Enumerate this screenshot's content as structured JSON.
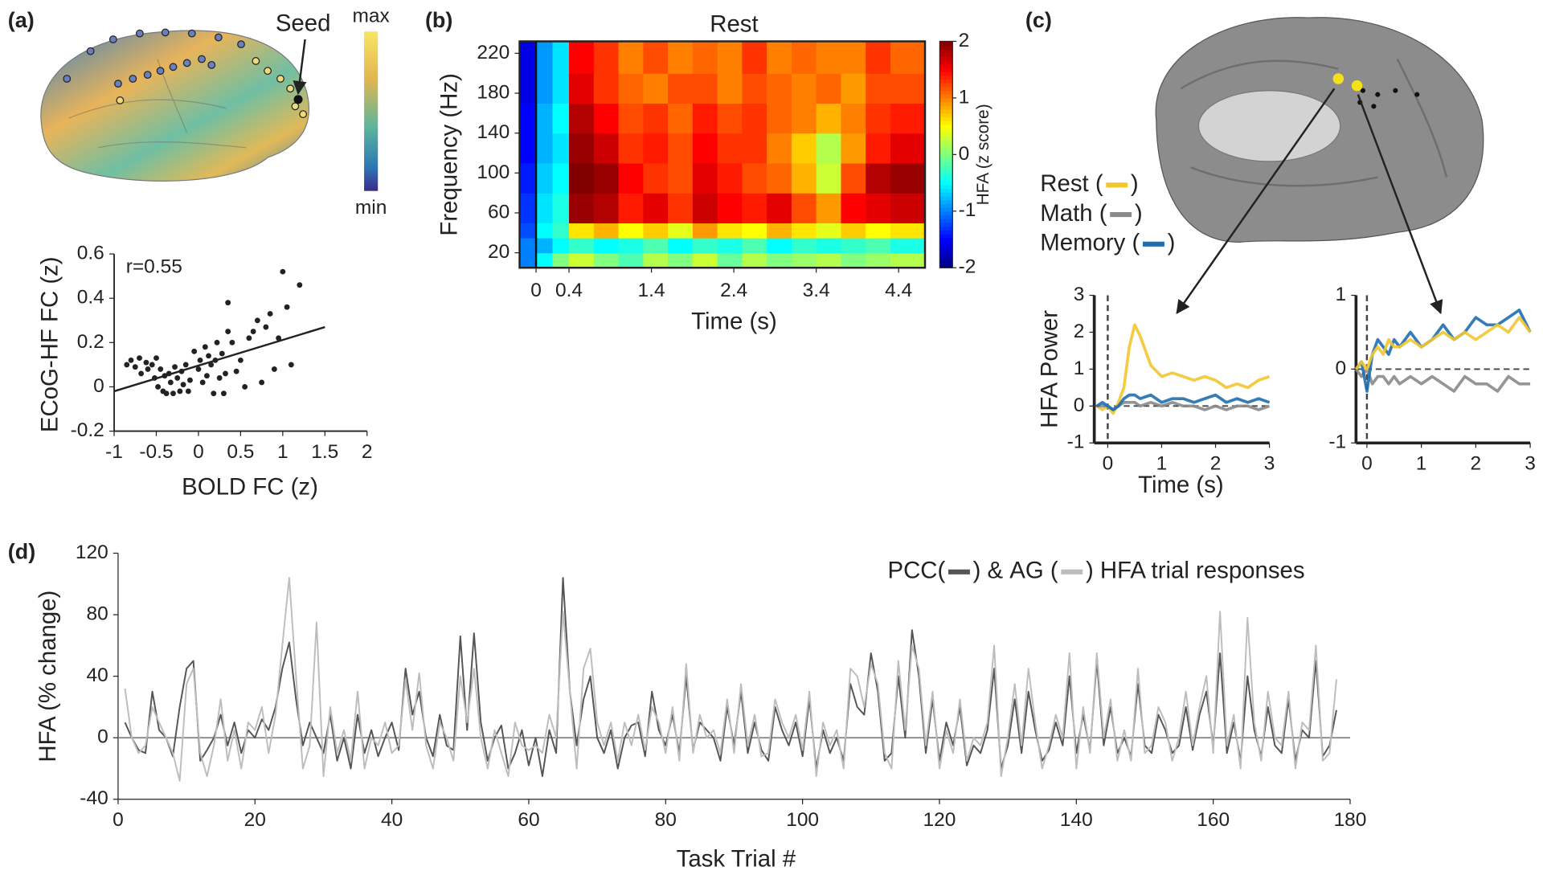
{
  "panel_labels": [
    "(a)",
    "(b)",
    "(c)",
    "(d)"
  ],
  "brain_map": {
    "max_label": "max",
    "min_label": "min",
    "seed_label": "Seed"
  },
  "chart_data": [
    {
      "type": "scatter",
      "xlabel": "BOLD FC (z)",
      "ylabel": "ECoG-HF FC (z)",
      "annotation": "r=0.55",
      "color": "#222222",
      "x": [
        -0.85,
        -0.8,
        -0.75,
        -0.7,
        -0.68,
        -0.62,
        -0.6,
        -0.55,
        -0.52,
        -0.5,
        -0.48,
        -0.45,
        -0.42,
        -0.4,
        -0.38,
        -0.35,
        -0.33,
        -0.3,
        -0.28,
        -0.25,
        -0.22,
        -0.2,
        -0.18,
        -0.15,
        -0.12,
        -0.1,
        -0.05,
        0,
        0.02,
        0.05,
        0.08,
        0.1,
        0.12,
        0.15,
        0.18,
        0.2,
        0.22,
        0.25,
        0.28,
        0.3,
        0.32,
        0.35,
        0.4,
        0.45,
        0.5,
        0.55,
        0.6,
        0.65,
        0.7,
        0.75,
        0.8,
        0.85,
        0.9,
        0.95,
        1.0,
        1.05,
        1.1,
        1.2,
        0.35
      ],
      "values": [
        0.1,
        0.12,
        0.09,
        0.13,
        0.06,
        0.11,
        0.08,
        0.1,
        0.04,
        0.13,
        0.0,
        0.08,
        -0.02,
        0.05,
        -0.03,
        0.06,
        0.02,
        -0.03,
        0.09,
        0.04,
        -0.02,
        0.07,
        0.01,
        0.1,
        -0.02,
        0.03,
        0.16,
        0.08,
        0.12,
        0.02,
        0.18,
        0.05,
        0.14,
        0.1,
        -0.03,
        0.12,
        0.2,
        0.04,
        0.15,
        -0.03,
        0.06,
        0.38,
        0.2,
        0.07,
        0.12,
        0.0,
        0.22,
        0.25,
        0.3,
        0.02,
        0.27,
        0.33,
        0.08,
        0.22,
        0.52,
        0.36,
        0.1,
        0.46,
        0.25
      ],
      "fit_line": {
        "x": [
          -1,
          1.5
        ],
        "y": [
          -0.02,
          0.27
        ]
      },
      "xlim": [
        -1,
        2
      ],
      "ylim": [
        -0.2,
        0.6
      ],
      "xticks": [
        -1,
        -0.5,
        0,
        0.5,
        1,
        1.5,
        2
      ],
      "yticks": [
        -0.2,
        0,
        0.2,
        0.4,
        0.6
      ]
    },
    {
      "type": "heatmap",
      "title": "Rest",
      "xlabel": "Time (s)",
      "ylabel": "Frequency (Hz)",
      "x_edges": [
        -0.2,
        0,
        0.2,
        0.4,
        0.7,
        1.0,
        1.3,
        1.6,
        1.9,
        2.2,
        2.5,
        2.8,
        3.1,
        3.4,
        3.7,
        4.0,
        4.3,
        4.72
      ],
      "y_edges": [
        5,
        20,
        35,
        50,
        80,
        110,
        140,
        170,
        200,
        232
      ],
      "z": [
        [
          -1,
          -0.5,
          0,
          0.3,
          0,
          -0.2,
          0.2,
          0,
          0.3,
          -0.1,
          0.2,
          0,
          0.1,
          0.2,
          0,
          0.1,
          0.2
        ],
        [
          -1,
          -0.8,
          -0.5,
          -0.3,
          -0.5,
          -0.4,
          -0.2,
          -0.5,
          -0.3,
          -0.4,
          -0.2,
          -0.5,
          -0.3,
          -0.4,
          -0.3,
          -0.2,
          -0.4
        ],
        [
          -1.2,
          -0.5,
          -0.3,
          0.6,
          0.8,
          0.5,
          0.7,
          0.4,
          0.9,
          0.6,
          0.5,
          0.8,
          0.6,
          0.4,
          0.7,
          0.5,
          0.6
        ],
        [
          -1.3,
          -0.6,
          -0.4,
          1.9,
          1.8,
          1.4,
          1.6,
          1.3,
          1.7,
          1.5,
          1.4,
          1.6,
          1.2,
          0.9,
          1.5,
          1.6,
          1.7
        ],
        [
          -1.4,
          -0.7,
          -0.5,
          2,
          1.9,
          1.5,
          1.3,
          1.2,
          1.6,
          1.4,
          1.2,
          1.1,
          0.8,
          0.3,
          1.2,
          1.8,
          1.9
        ],
        [
          -1.5,
          -0.8,
          -0.6,
          1.9,
          1.7,
          1.3,
          1.4,
          1.2,
          1.5,
          1.3,
          1.3,
          1.0,
          0.7,
          0.2,
          0.9,
          1.4,
          1.6
        ],
        [
          -1.5,
          -0.8,
          -0.5,
          1.8,
          1.5,
          1.2,
          1.3,
          1.1,
          1.4,
          1.2,
          1.3,
          1.1,
          1.0,
          0.8,
          1.0,
          1.3,
          1.4
        ],
        [
          -1.6,
          -0.9,
          -0.6,
          1.6,
          1.3,
          1.1,
          1.0,
          1.2,
          1.2,
          1.0,
          1.2,
          1.1,
          1.0,
          1.1,
          0.9,
          1.2,
          1.2
        ],
        [
          -1.6,
          -0.9,
          -0.6,
          1.5,
          1.3,
          1.0,
          1.2,
          1.0,
          1.1,
          1.0,
          1.3,
          1.0,
          1.1,
          1.0,
          1.0,
          1.3,
          1.1
        ]
      ],
      "xlim": [
        -0.2,
        4.72
      ],
      "ylim": [
        5,
        232
      ],
      "xticks": [
        0,
        0.4,
        1.4,
        2.4,
        3.4,
        4.4
      ],
      "yticks": [
        20,
        60,
        100,
        140,
        180,
        220
      ],
      "colorbar": {
        "label": "HFA (z score)",
        "colormap": "jet",
        "lim": [
          -2,
          2
        ],
        "ticks": [
          -2,
          -1,
          0,
          1,
          2
        ]
      }
    },
    {
      "type": "line",
      "xlabel": "Time (s)",
      "ylabel": "HFA Power",
      "legend_text": [
        " (",
        ")"
      ],
      "x": [
        -0.2,
        -0.1,
        0,
        0.1,
        0.2,
        0.3,
        0.4,
        0.5,
        0.6,
        0.8,
        1.0,
        1.2,
        1.4,
        1.6,
        1.8,
        2.0,
        2.2,
        2.4,
        2.6,
        2.8,
        3.0
      ],
      "series": [
        {
          "name": "Rest",
          "color": "#f2c62f",
          "values": [
            0,
            -0.1,
            0,
            -0.2,
            0.1,
            0.5,
            1.6,
            2.2,
            1.9,
            1.1,
            0.8,
            0.9,
            0.8,
            0.7,
            0.8,
            0.7,
            0.5,
            0.6,
            0.5,
            0.7,
            0.8
          ]
        },
        {
          "name": "Math",
          "color": "#8a8a8a",
          "values": [
            0,
            0,
            0,
            -0.1,
            0,
            0.1,
            0.1,
            0.1,
            0,
            0.1,
            0,
            0.1,
            0,
            0,
            -0.1,
            0,
            -0.1,
            0,
            0,
            -0.1,
            0
          ]
        },
        {
          "name": "Memory",
          "color": "#1f6fb0",
          "values": [
            0,
            0.1,
            0,
            -0.1,
            0,
            0.2,
            0.3,
            0.3,
            0.2,
            0.3,
            0.1,
            0.2,
            0.2,
            0.1,
            0.2,
            0.3,
            0.1,
            0.2,
            0.1,
            0.2,
            0.1
          ]
        }
      ],
      "xlim": [
        -0.25,
        3
      ],
      "ylim": [
        -1,
        3
      ],
      "xticks": [
        0,
        1,
        2,
        3
      ],
      "yticks": [
        -1,
        0,
        1,
        2,
        3
      ]
    },
    {
      "type": "line",
      "x": [
        -0.2,
        -0.1,
        0,
        0.1,
        0.2,
        0.3,
        0.4,
        0.5,
        0.6,
        0.8,
        1.0,
        1.2,
        1.4,
        1.6,
        1.8,
        2.0,
        2.2,
        2.4,
        2.6,
        2.8,
        3.0
      ],
      "series": [
        {
          "color": "#8a8a8a",
          "values": [
            0,
            -0.1,
            0,
            -0.2,
            -0.1,
            -0.1,
            -0.2,
            -0.1,
            -0.2,
            -0.1,
            -0.2,
            -0.1,
            -0.2,
            -0.3,
            -0.1,
            -0.2,
            -0.2,
            -0.3,
            -0.1,
            -0.2,
            -0.2
          ]
        },
        {
          "color": "#1f6fb0",
          "values": [
            0,
            0.1,
            -0.3,
            0.2,
            0.4,
            0.3,
            0.2,
            0.4,
            0.3,
            0.5,
            0.3,
            0.4,
            0.6,
            0.4,
            0.5,
            0.7,
            0.6,
            0.6,
            0.7,
            0.8,
            0.5
          ]
        },
        {
          "color": "#f2c62f",
          "values": [
            0,
            0.1,
            0,
            0.2,
            0.3,
            0.2,
            0.4,
            0.3,
            0.3,
            0.4,
            0.3,
            0.4,
            0.5,
            0.4,
            0.5,
            0.4,
            0.5,
            0.6,
            0.5,
            0.7,
            0.5
          ]
        }
      ],
      "xlim": [
        -0.2,
        3
      ],
      "ylim": [
        -1,
        1
      ],
      "xticks": [
        0,
        1,
        2,
        3
      ],
      "yticks": [
        -1,
        0,
        1
      ]
    },
    {
      "type": "line",
      "xlabel": "Task Trial #",
      "ylabel": "HFA (% change)",
      "legend_text": [
        "(",
        ") & ",
        " (",
        ") HFA trial responses"
      ],
      "x": [
        1,
        2,
        3,
        4,
        5,
        6,
        7,
        8,
        9,
        10,
        11,
        12,
        13,
        14,
        15,
        16,
        17,
        18,
        19,
        20,
        21,
        22,
        23,
        24,
        25,
        26,
        27,
        28,
        29,
        30,
        31,
        32,
        33,
        34,
        35,
        36,
        37,
        38,
        39,
        40,
        41,
        42,
        43,
        44,
        45,
        46,
        47,
        48,
        49,
        50,
        51,
        52,
        53,
        54,
        55,
        56,
        57,
        58,
        59,
        60,
        61,
        62,
        63,
        64,
        65,
        66,
        67,
        68,
        69,
        70,
        71,
        72,
        73,
        74,
        75,
        76,
        77,
        78,
        79,
        80,
        81,
        82,
        83,
        84,
        85,
        86,
        87,
        88,
        89,
        90,
        91,
        92,
        93,
        94,
        95,
        96,
        97,
        98,
        99,
        100,
        101,
        102,
        103,
        104,
        105,
        106,
        107,
        108,
        109,
        110,
        111,
        112,
        113,
        114,
        115,
        116,
        117,
        118,
        119,
        120,
        121,
        122,
        123,
        124,
        125,
        126,
        127,
        128,
        129,
        130,
        131,
        132,
        133,
        134,
        135,
        136,
        137,
        138,
        139,
        140,
        141,
        142,
        143,
        144,
        145,
        146,
        147,
        148,
        149,
        150,
        151,
        152,
        153,
        154,
        155,
        156,
        157,
        158,
        159,
        160,
        161,
        162,
        163,
        164,
        165,
        166,
        167,
        168,
        169,
        170,
        171,
        172,
        173,
        174,
        175,
        176,
        177,
        178
      ],
      "series": [
        {
          "name": "PCC",
          "color": "#555555",
          "values": [
            10,
            0,
            -8,
            -10,
            30,
            5,
            0,
            -12,
            20,
            45,
            50,
            -15,
            -8,
            0,
            15,
            -5,
            10,
            -10,
            5,
            0,
            12,
            5,
            20,
            45,
            62,
            25,
            -5,
            10,
            0,
            -10,
            15,
            -15,
            0,
            -20,
            15,
            -10,
            5,
            -12,
            0,
            10,
            -8,
            45,
            15,
            30,
            0,
            -12,
            15,
            -5,
            -8,
            66,
            5,
            68,
            10,
            -15,
            0,
            8,
            -20,
            -10,
            5,
            -18,
            0,
            -25,
            5,
            -10,
            104,
            30,
            -5,
            25,
            40,
            0,
            -10,
            5,
            -20,
            0,
            8,
            10,
            -12,
            30,
            5,
            -5,
            15,
            -10,
            40,
            -8,
            10,
            5,
            0,
            -15,
            20,
            -5,
            30,
            -10,
            10,
            -8,
            -15,
            20,
            5,
            -5,
            10,
            -12,
            25,
            -20,
            5,
            -10,
            0,
            -15,
            35,
            20,
            15,
            55,
            30,
            -15,
            -10,
            40,
            0,
            70,
            40,
            -10,
            25,
            -15,
            10,
            -5,
            20,
            -18,
            -5,
            -10,
            5,
            45,
            -20,
            -5,
            25,
            -10,
            30,
            5,
            -15,
            -8,
            10,
            -5,
            40,
            -10,
            15,
            -8,
            50,
            -5,
            20,
            -10,
            0,
            -12,
            35,
            -5,
            -10,
            15,
            5,
            -10,
            -5,
            20,
            -8,
            15,
            30,
            -5,
            55,
            -10,
            10,
            -15,
            40,
            5,
            -12,
            20,
            -5,
            -10,
            25,
            -15,
            5,
            0,
            50,
            -12,
            -5,
            18
          ]
        },
        {
          "name": "AG",
          "color": "#bdbdbd",
          "values": [
            32,
            0,
            -10,
            -5,
            20,
            10,
            0,
            -10,
            -28,
            35,
            45,
            -10,
            -25,
            -5,
            25,
            -15,
            5,
            -20,
            10,
            5,
            20,
            -10,
            15,
            60,
            104,
            40,
            -20,
            -5,
            75,
            -25,
            20,
            -10,
            5,
            -15,
            30,
            -20,
            0,
            -5,
            10,
            -10,
            -5,
            38,
            5,
            42,
            -5,
            -20,
            10,
            0,
            -15,
            40,
            10,
            45,
            0,
            -20,
            5,
            -10,
            -25,
            10,
            -5,
            -8,
            -5,
            -10,
            15,
            0,
            82,
            30,
            -20,
            45,
            58,
            10,
            -5,
            10,
            -15,
            10,
            -5,
            15,
            -8,
            20,
            10,
            -10,
            20,
            -15,
            48,
            -10,
            15,
            0,
            5,
            -10,
            25,
            -10,
            35,
            -5,
            15,
            -12,
            -10,
            25,
            10,
            0,
            15,
            -8,
            30,
            -25,
            10,
            -5,
            5,
            -20,
            45,
            40,
            20,
            48,
            35,
            -10,
            -20,
            50,
            5,
            60,
            45,
            -5,
            30,
            -20,
            5,
            -10,
            25,
            -15,
            0,
            -5,
            10,
            60,
            -25,
            0,
            35,
            -5,
            45,
            10,
            -20,
            -5,
            15,
            0,
            55,
            -20,
            20,
            -10,
            55,
            0,
            25,
            -15,
            5,
            -15,
            45,
            -10,
            -5,
            20,
            10,
            -15,
            0,
            30,
            -5,
            20,
            40,
            -10,
            82,
            -5,
            15,
            -20,
            78,
            10,
            -15,
            30,
            0,
            -5,
            30,
            -20,
            10,
            5,
            60,
            -15,
            -10,
            38
          ]
        }
      ],
      "xlim": [
        0,
        180
      ],
      "ylim": [
        -40,
        120
      ],
      "xticks": [
        0,
        20,
        40,
        60,
        80,
        100,
        120,
        140,
        160,
        180
      ],
      "yticks": [
        -40,
        0,
        40,
        80,
        120
      ]
    }
  ]
}
